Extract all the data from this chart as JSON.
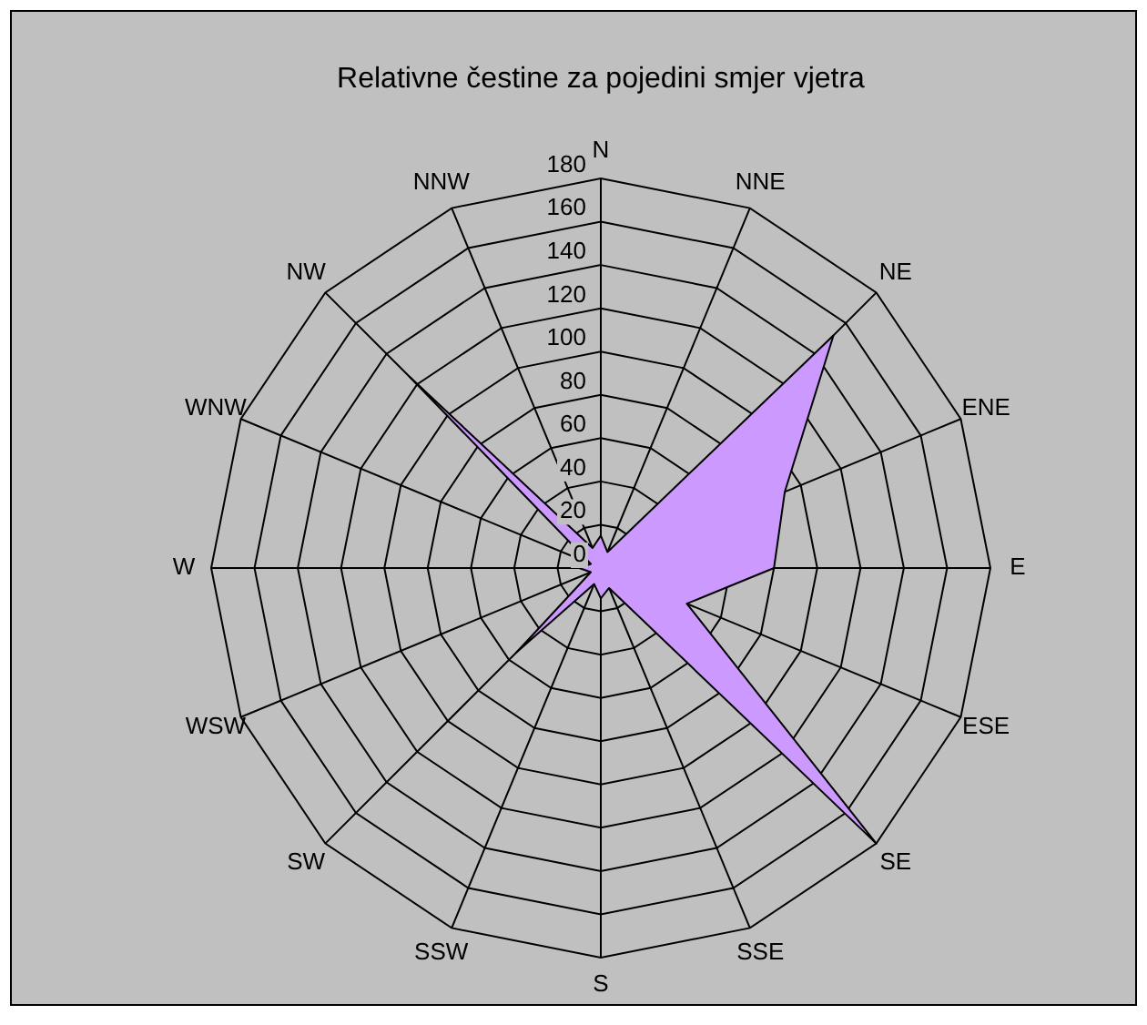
{
  "chart_data": {
    "type": "radar",
    "title": "Relativne čestine za pojedini smjer vjetra",
    "categories": [
      "N",
      "NNE",
      "NE",
      "ENE",
      "E",
      "ESE",
      "SE",
      "SSE",
      "S",
      "SSW",
      "SW",
      "WSW",
      "W",
      "WNW",
      "NW",
      "NNW"
    ],
    "series": [
      {
        "color": "#cc99ff",
        "values": [
          15,
          8,
          152,
          92,
          80,
          43,
          180,
          10,
          14,
          8,
          55,
          5,
          10,
          5,
          125,
          10
        ]
      }
    ],
    "ylim": [
      0,
      180
    ],
    "yticks": [
      0,
      20,
      40,
      60,
      80,
      100,
      120,
      140,
      160,
      180
    ],
    "grid": true
  }
}
